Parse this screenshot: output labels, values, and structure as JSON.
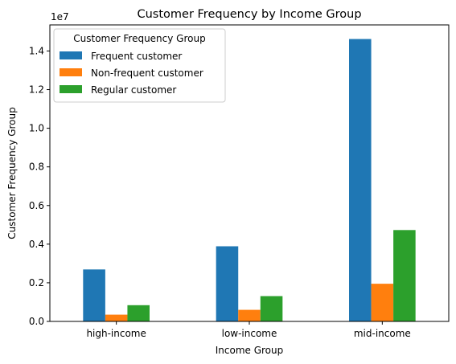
{
  "chart_data": {
    "type": "bar",
    "title": "Customer Frequency by Income Group",
    "xlabel": "Income Group",
    "ylabel": "Customer Frequency Group",
    "y_exponent_label": "1e7",
    "y_scale_factor": 10000000,
    "categories": [
      "high-income",
      "low-income",
      "mid-income"
    ],
    "series": [
      {
        "name": "Frequent customer",
        "color": "#1f77b4",
        "values": [
          2690000,
          3890000,
          14620000
        ]
      },
      {
        "name": "Non-frequent customer",
        "color": "#ff7f0e",
        "values": [
          350000,
          600000,
          1950000
        ]
      },
      {
        "name": "Regular customer",
        "color": "#2ca02c",
        "values": [
          840000,
          1310000,
          4730000
        ]
      }
    ],
    "ylim": [
      0,
      15350000
    ],
    "yticks": [
      0,
      2000000,
      4000000,
      6000000,
      8000000,
      10000000,
      12000000,
      14000000
    ],
    "ytick_labels": [
      "0.0",
      "0.2",
      "0.4",
      "0.6",
      "0.8",
      "1.0",
      "1.2",
      "1.4"
    ],
    "legend": {
      "title": "Customer Frequency Group",
      "position": "top-left"
    },
    "grid": false
  }
}
